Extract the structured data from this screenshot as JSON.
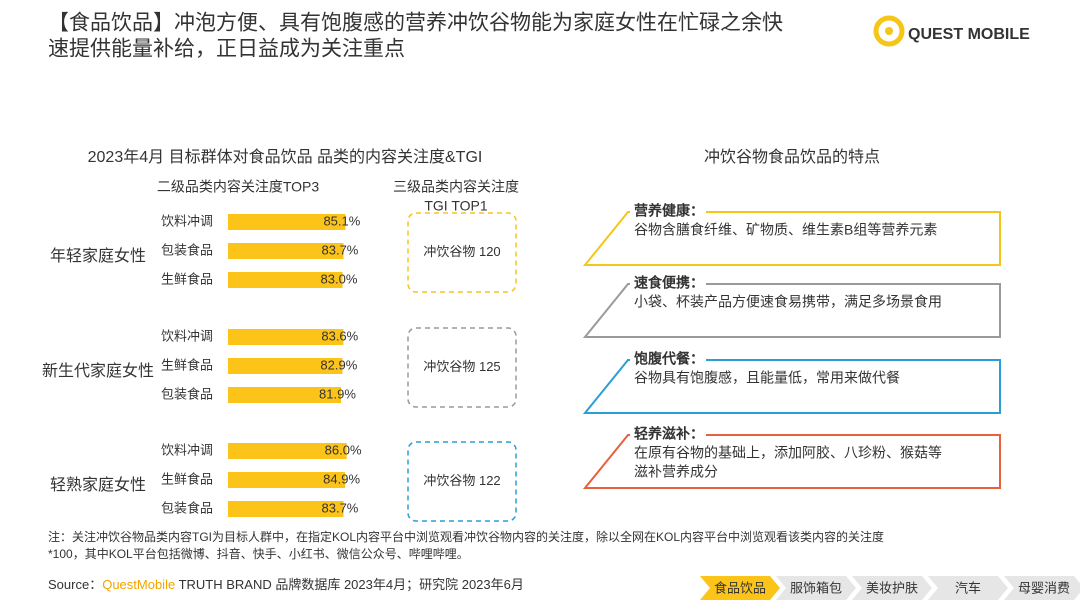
{
  "header": {
    "title_lines": [
      "【食品饮品】冲泡方便、具有饱腹感的营养冲饮谷物能为家庭女性在忙碌之余快",
      "速提供能量补给，正日益成为关注重点"
    ],
    "logo": "QUEST MOBILE"
  },
  "chart_data": {
    "type": "bar",
    "title": "2023年4月 目标群体对食品饮品 品类的内容关注度&TGI",
    "column_headers": [
      "二级品类内容关注度TOP3",
      "三级品类内容关注度",
      "TGI TOP1"
    ],
    "color": "#fcc419",
    "groups": [
      {
        "name": "年轻家庭女性",
        "categories": [
          "饮料冲调",
          "包装食品",
          "生鲜食品"
        ],
        "values": [
          85.1,
          83.7,
          83.0
        ],
        "value_labels": [
          "85.1%",
          "83.7%",
          "83.0%"
        ],
        "tgi_category": "冲饮谷物",
        "tgi": 120,
        "box_color": "#f5c518"
      },
      {
        "name": "新生代家庭女性",
        "categories": [
          "饮料冲调",
          "生鲜食品",
          "包装食品"
        ],
        "values": [
          83.6,
          82.9,
          81.9
        ],
        "value_labels": [
          "83.6%",
          "82.9%",
          "81.9%"
        ],
        "tgi_category": "冲饮谷物",
        "tgi": 125,
        "box_color": "#9a9a9a"
      },
      {
        "name": "轻熟家庭女性",
        "categories": [
          "饮料冲调",
          "生鲜食品",
          "包装食品"
        ],
        "values": [
          86.0,
          84.9,
          83.7
        ],
        "value_labels": [
          "86.0%",
          "84.9%",
          "83.7%"
        ],
        "tgi_category": "冲饮谷物",
        "tgi": 122,
        "box_color": "#2a9fd6"
      }
    ]
  },
  "features": {
    "title": "冲饮谷物食品饮品的特点",
    "items": [
      {
        "title": "营养健康：",
        "lines": [
          "谷物含膳食纤维、矿物质、维生素B组等营养元素"
        ],
        "color": "#f5c518"
      },
      {
        "title": "速食便携：",
        "lines": [
          "小袋、杯装产品方便速食易携带，满足多场景食用"
        ],
        "color": "#9a9a9a"
      },
      {
        "title": "饱腹代餐：",
        "lines": [
          "谷物具有饱腹感，且能量低，常用来做代餐"
        ],
        "color": "#2a9fd6"
      },
      {
        "title": "轻养滋补：",
        "lines": [
          "在原有谷物的基础上，添加阿胶、八珍粉、猴菇等",
          "滋补营养成分"
        ],
        "color": "#e8603c"
      }
    ]
  },
  "footer": {
    "note_lines": [
      "注：关注冲饮谷物品类内容TGI为目标人群中，在指定KOL内容平台中浏览观看冲饮谷物内容的关注度，除以全网在KOL内容平台中浏览观看该类内容的关注度",
      "*100，其中KOL平台包括微博、抖音、快手、小红书、微信公众号、哔哩哔哩。"
    ],
    "source_prefix": "Source：",
    "source_brand": "QuestMobile",
    "source_rest": " TRUTH BRAND 品牌数据库 2023年4月；研究院 2023年6月"
  },
  "tabs": {
    "items": [
      "食品饮品",
      "服饰箱包",
      "美妆护肤",
      "汽车",
      "母婴消费"
    ],
    "active": 0
  }
}
